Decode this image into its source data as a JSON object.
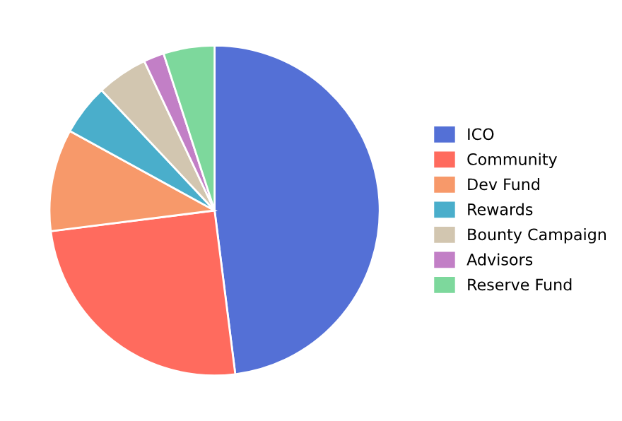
{
  "chart_data": {
    "type": "pie",
    "categories": [
      "ICO",
      "Community",
      "Dev Fund",
      "Rewards",
      "Bounty Campaign",
      "Advisors",
      "Reserve Fund"
    ],
    "values": [
      48,
      25,
      10,
      5,
      5,
      2,
      5
    ],
    "colors": [
      "#5470d6",
      "#ff6b5e",
      "#f7996a",
      "#4aaecb",
      "#d2c6b0",
      "#c27fc6",
      "#7dd89c"
    ],
    "legend": "right"
  }
}
